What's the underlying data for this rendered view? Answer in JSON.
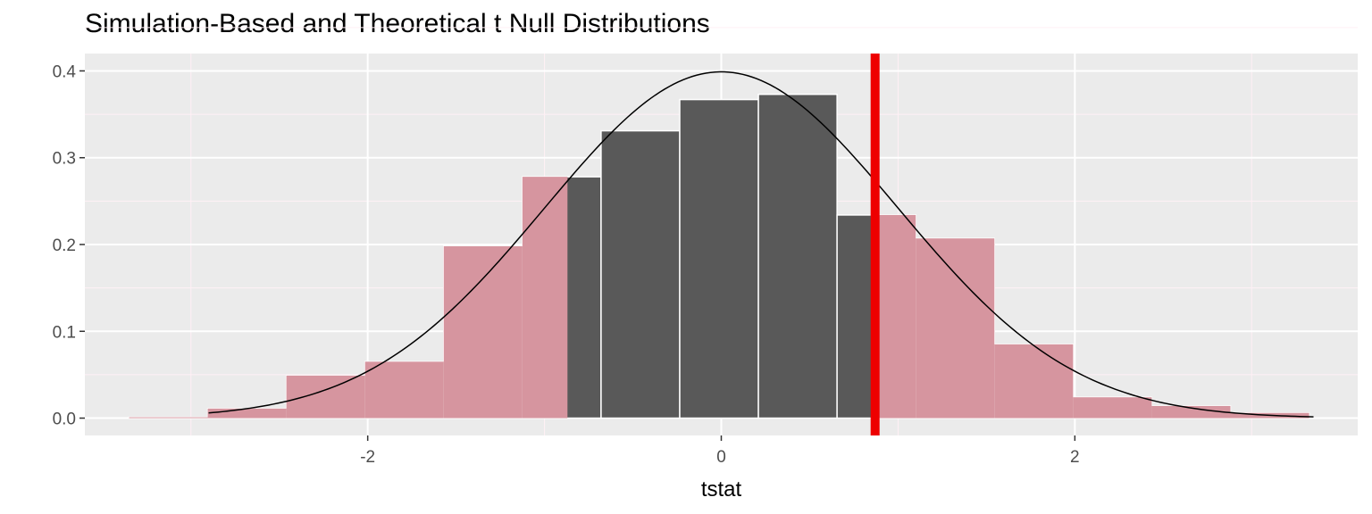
{
  "chart_data": {
    "type": "bar",
    "title": "Simulation-Based and Theoretical t Null Distributions",
    "xlabel": "tstat",
    "ylabel": "",
    "xlim": [
      -3.6,
      3.6
    ],
    "ylim": [
      -0.02,
      0.42
    ],
    "x_ticks": [
      -2,
      0,
      2
    ],
    "x_tick_labels": [
      "-2",
      "0",
      "2"
    ],
    "y_ticks": [
      0.0,
      0.1,
      0.2,
      0.3,
      0.4
    ],
    "y_tick_labels": [
      "0.0",
      "0.1",
      "0.2",
      "0.3",
      "0.4"
    ],
    "grid": true,
    "histogram": {
      "bin_width": 0.445,
      "bins": [
        {
          "x0": -3.35,
          "x1": -2.905,
          "density": 0.001,
          "shaded": true
        },
        {
          "x0": -2.905,
          "x1": -2.46,
          "density": 0.011,
          "shaded": true
        },
        {
          "x0": -2.46,
          "x1": -2.015,
          "density": 0.049,
          "shaded": true
        },
        {
          "x0": -2.015,
          "x1": -1.57,
          "density": 0.065,
          "shaded": true
        },
        {
          "x0": -1.57,
          "x1": -1.125,
          "density": 0.198,
          "shaded": true
        },
        {
          "x0": -1.125,
          "x1": -0.68,
          "density": 0.278,
          "shaded": true
        },
        {
          "x0": -0.68,
          "x1": -0.235,
          "density": 0.331,
          "shaded": false
        },
        {
          "x0": -0.235,
          "x1": 0.21,
          "density": 0.367,
          "shaded": false
        },
        {
          "x0": 0.21,
          "x1": 0.655,
          "density": 0.373,
          "shaded": false
        },
        {
          "x0": 0.655,
          "x1": 1.1,
          "density": 0.234,
          "shaded": false
        },
        {
          "x0": 1.1,
          "x1": 1.545,
          "density": 0.207,
          "shaded": true
        },
        {
          "x0": 1.545,
          "x1": 1.99,
          "density": 0.085,
          "shaded": true
        },
        {
          "x0": 1.99,
          "x1": 2.435,
          "density": 0.024,
          "shaded": true
        },
        {
          "x0": 2.435,
          "x1": 2.88,
          "density": 0.014,
          "shaded": true
        },
        {
          "x0": 2.88,
          "x1": 3.325,
          "density": 0.006,
          "shaded": true
        }
      ]
    },
    "shade_lower_max": -0.87,
    "shade_upper_min": 0.87,
    "observed_stat": 0.87,
    "theoretical_curve": {
      "distribution": "t",
      "x_range": [
        -2.9,
        3.35
      ]
    },
    "colors": {
      "panel": "#ebebeb",
      "grid_major": "#ffffff",
      "grid_minor": "#fff0f5",
      "bar_fill": "#595959",
      "bar_outline": "#ffffff",
      "shade": "#d6959f",
      "observed_line": "#ee0000",
      "curve": "#000000"
    }
  }
}
